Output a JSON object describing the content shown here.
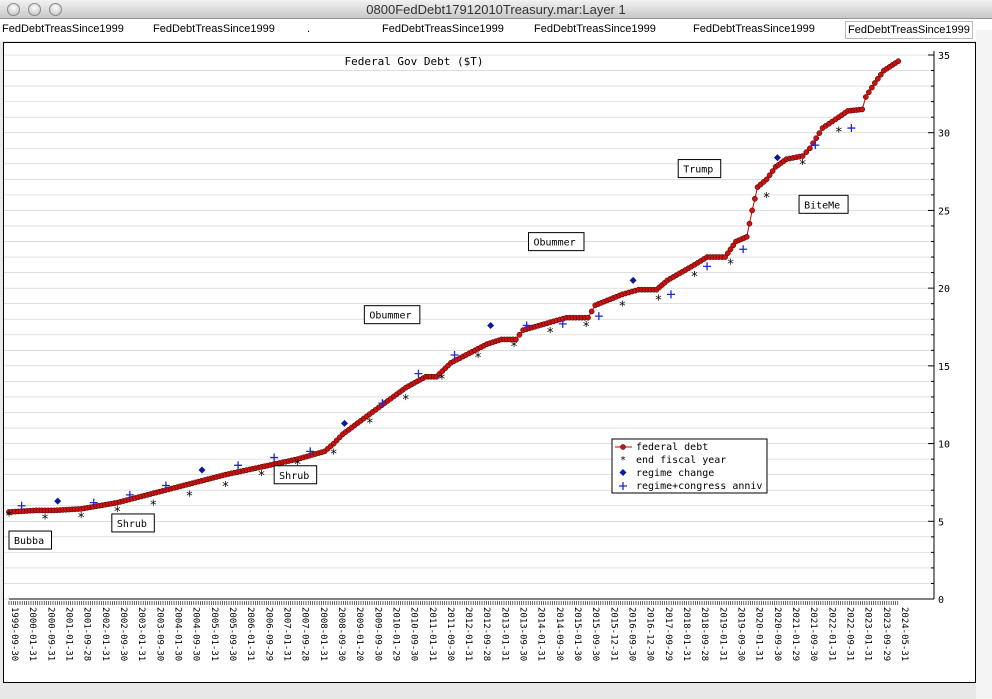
{
  "window": {
    "title": "0800FedDebt17912010Treasury.mar:Layer 1"
  },
  "tabs": [
    "FedDebtTreasSince1999",
    "FedDebtTreasSince1999",
    ".",
    "FedDebtTreasSince1999",
    "FedDebtTreasSince1999",
    "FedDebtTreasSince1999",
    "FedDebtTreasSince1999"
  ],
  "chart_data": {
    "type": "line",
    "title": "Federal Gov Debt ($T)",
    "ylim": [
      0,
      35
    ],
    "yticks": [
      0,
      5,
      10,
      15,
      20,
      25,
      30,
      35
    ],
    "xlim": [
      1999.75,
      2024.42
    ],
    "grid": true,
    "legend_position": "center-right",
    "legend": [
      "federal debt",
      "end fiscal year",
      "regime change",
      "regime+congress anniv"
    ],
    "colors": {
      "debt_line": "#cc0000",
      "debt_marker": "#cc1111",
      "fiscal": "#000000",
      "regime": "#0a1a9a",
      "anniv": "#1a2ad0"
    },
    "xtick_labels": [
      "1999-09-30",
      "2000-01-31",
      "2000-09-31",
      "2001-01-31",
      "2001-09-28",
      "2002-01-31",
      "2002-09-30",
      "2003-01-31",
      "2003-09-30",
      "2004-01-30",
      "2004-09-30",
      "2005-01-31",
      "2005-09-30",
      "2006-01-31",
      "2006-09-29",
      "2007-01-31",
      "2007-09-28",
      "2008-01-31",
      "2008-09-30",
      "2009-01-20",
      "2009-09-30",
      "2010-01-29",
      "2010-09-30",
      "2011-01-31",
      "2011-09-30",
      "2012-01-31",
      "2012-09-28",
      "2013-01-31",
      "2013-09-30",
      "2014-01-31",
      "2014-09-30",
      "2015-01-30",
      "2015-09-30",
      "2015-12-31",
      "2016-09-30",
      "2016-12-30",
      "2017-09-29",
      "2018-01-31",
      "2018-09-28",
      "2019-01-31",
      "2019-09-30",
      "2020-01-31",
      "2020-09-30",
      "2021-01-29",
      "2021-09-30",
      "2022-01-31",
      "2022-09-31",
      "2023-01-31",
      "2023-09-29",
      "2024-05-31"
    ],
    "federal_debt": [
      [
        1999.75,
        5.6
      ],
      [
        2000.5,
        5.7
      ],
      [
        2001.0,
        5.7
      ],
      [
        2001.75,
        5.8
      ],
      [
        2002.75,
        6.2
      ],
      [
        2003.75,
        6.8
      ],
      [
        2004.75,
        7.4
      ],
      [
        2005.75,
        8.0
      ],
      [
        2006.75,
        8.5
      ],
      [
        2007.75,
        9.0
      ],
      [
        2008.5,
        9.5
      ],
      [
        2008.75,
        10.0
      ],
      [
        2009.0,
        10.6
      ],
      [
        2009.75,
        11.9
      ],
      [
        2010.75,
        13.6
      ],
      [
        2011.3,
        14.3
      ],
      [
        2011.6,
        14.3
      ],
      [
        2012.0,
        15.2
      ],
      [
        2012.75,
        16.1
      ],
      [
        2013.0,
        16.4
      ],
      [
        2013.4,
        16.7
      ],
      [
        2013.8,
        16.7
      ],
      [
        2014.0,
        17.3
      ],
      [
        2014.75,
        17.8
      ],
      [
        2015.2,
        18.1
      ],
      [
        2015.8,
        18.1
      ],
      [
        2016.0,
        18.9
      ],
      [
        2016.75,
        19.6
      ],
      [
        2017.2,
        19.9
      ],
      [
        2017.7,
        19.9
      ],
      [
        2018.0,
        20.5
      ],
      [
        2018.75,
        21.5
      ],
      [
        2019.1,
        22.0
      ],
      [
        2019.6,
        22.0
      ],
      [
        2019.9,
        23.0
      ],
      [
        2020.2,
        23.3
      ],
      [
        2020.35,
        25.0
      ],
      [
        2020.5,
        26.5
      ],
      [
        2020.75,
        27.0
      ],
      [
        2021.0,
        27.8
      ],
      [
        2021.3,
        28.3
      ],
      [
        2021.75,
        28.5
      ],
      [
        2021.95,
        29.0
      ],
      [
        2022.3,
        30.3
      ],
      [
        2022.75,
        31.0
      ],
      [
        2023.0,
        31.4
      ],
      [
        2023.4,
        31.5
      ],
      [
        2023.5,
        32.3
      ],
      [
        2023.75,
        33.2
      ],
      [
        2024.0,
        34.0
      ],
      [
        2024.4,
        34.6
      ]
    ],
    "end_fiscal_year": [
      [
        1999.75,
        5.5
      ],
      [
        2000.75,
        5.3
      ],
      [
        2001.75,
        5.4
      ],
      [
        2002.75,
        5.8
      ],
      [
        2003.75,
        6.2
      ],
      [
        2004.75,
        6.8
      ],
      [
        2005.75,
        7.4
      ],
      [
        2006.75,
        8.1
      ],
      [
        2007.75,
        8.8
      ],
      [
        2008.75,
        9.5
      ],
      [
        2009.75,
        11.5
      ],
      [
        2010.75,
        13.0
      ],
      [
        2011.75,
        14.3
      ],
      [
        2012.75,
        15.7
      ],
      [
        2013.75,
        16.4
      ],
      [
        2014.75,
        17.3
      ],
      [
        2015.75,
        17.7
      ],
      [
        2016.75,
        19.0
      ],
      [
        2017.75,
        19.4
      ],
      [
        2018.75,
        20.9
      ],
      [
        2019.75,
        21.7
      ],
      [
        2020.75,
        26.0
      ],
      [
        2021.75,
        28.1
      ],
      [
        2022.75,
        30.2
      ]
    ],
    "regime_change": [
      [
        2001.1,
        6.3
      ],
      [
        2005.1,
        8.3
      ],
      [
        2009.05,
        11.3
      ],
      [
        2013.1,
        17.6
      ],
      [
        2017.05,
        20.5
      ],
      [
        2021.05,
        28.4
      ]
    ],
    "regime_congress_anniv": [
      [
        2000.1,
        6.0
      ],
      [
        2002.1,
        6.2
      ],
      [
        2003.1,
        6.7
      ],
      [
        2004.1,
        7.3
      ],
      [
        2006.1,
        8.6
      ],
      [
        2007.1,
        9.1
      ],
      [
        2008.1,
        9.5
      ],
      [
        2010.1,
        12.6
      ],
      [
        2011.1,
        14.5
      ],
      [
        2012.1,
        15.7
      ],
      [
        2014.1,
        17.6
      ],
      [
        2015.1,
        17.7
      ],
      [
        2016.1,
        18.2
      ],
      [
        2018.1,
        19.6
      ],
      [
        2019.1,
        21.4
      ],
      [
        2020.1,
        22.5
      ],
      [
        2022.1,
        29.2
      ],
      [
        2023.1,
        30.3
      ]
    ],
    "annotations": [
      {
        "text": "Bubba",
        "x": 1999.75,
        "y": 3.6
      },
      {
        "text": "Shrub",
        "x": 2002.6,
        "y": 4.7
      },
      {
        "text": "Shrub",
        "x": 2007.1,
        "y": 7.8
      },
      {
        "text": "Obummer",
        "x": 2009.6,
        "y": 18.1
      },
      {
        "text": "Obummer",
        "x": 2014.15,
        "y": 22.8
      },
      {
        "text": "Trump",
        "x": 2018.3,
        "y": 27.5
      },
      {
        "text": "BiteMe",
        "x": 2021.65,
        "y": 25.2
      }
    ]
  }
}
